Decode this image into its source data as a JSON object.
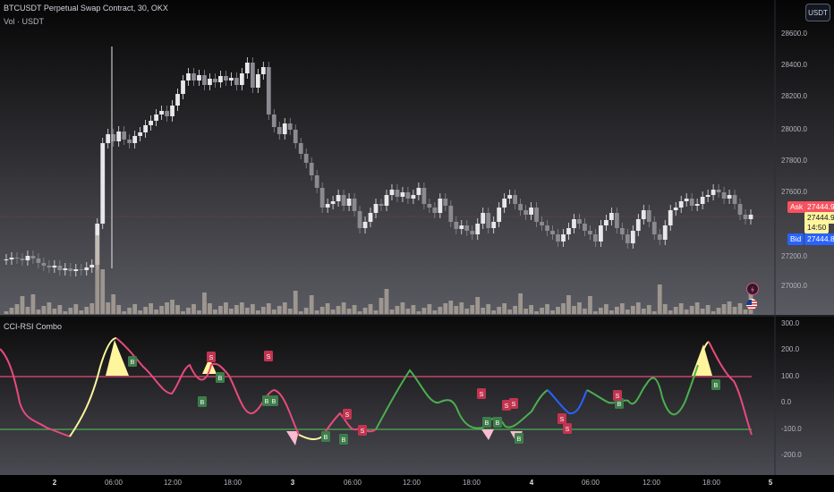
{
  "header": {
    "title": "BTCUSDT Perpetual Swap Contract, 30, OKX",
    "volume_label": "Vol · USDT",
    "currency_button": "USDT"
  },
  "price_axis": {
    "labels": [
      "28600.0",
      "28400.0",
      "28200.0",
      "28000.0",
      "27800.0",
      "27600.0",
      "27200.0",
      "27000.0"
    ]
  },
  "quote": {
    "ask_label": "Ask",
    "ask_price": "27444.9",
    "last_price": "27444.9",
    "countdown": "14:50",
    "bid_label": "Bid",
    "bid_price": "27444.8",
    "ask_color": "#f7525f",
    "bid_color": "#2962ff",
    "last_color": "#fff59d"
  },
  "indicator": {
    "title": "CCI-RSI Combo",
    "axis_labels": [
      "300.0",
      "200.0",
      "100.0",
      "0.0",
      "-100.0",
      "-200.0"
    ],
    "upper_line_color": "#e84a7a",
    "lower_line_color": "#4caf50",
    "buy_label": "B",
    "sell_label": "S"
  },
  "time_axis": {
    "labels": [
      {
        "text": "2",
        "bold": true
      },
      {
        "text": "06:00",
        "bold": false
      },
      {
        "text": "12:00",
        "bold": false
      },
      {
        "text": "18:00",
        "bold": false
      },
      {
        "text": "3",
        "bold": true
      },
      {
        "text": "06:00",
        "bold": false
      },
      {
        "text": "12:00",
        "bold": false
      },
      {
        "text": "18:00",
        "bold": false
      },
      {
        "text": "4",
        "bold": true
      },
      {
        "text": "06:00",
        "bold": false
      },
      {
        "text": "12:00",
        "bold": false
      },
      {
        "text": "18:00",
        "bold": false
      },
      {
        "text": "5",
        "bold": true
      }
    ]
  },
  "icons": [
    "lightning-icon",
    "us-flag-icon"
  ]
}
